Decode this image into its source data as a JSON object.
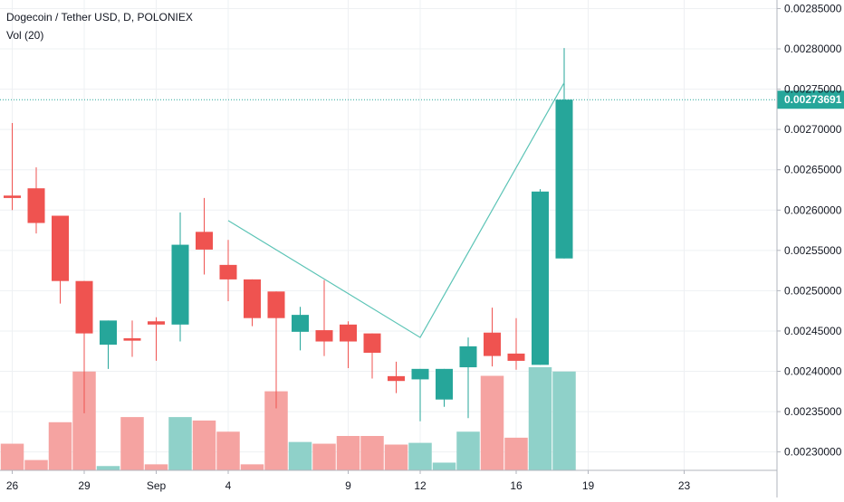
{
  "chart_data": {
    "type": "candlestick",
    "title": "Dogecoin / Tether USD, D, POLONIEX",
    "indicator": "Vol (20)",
    "last_price_label": "0.00273691",
    "last_price": 0.00273691,
    "y_range": [
      0.002285,
      0.002855
    ],
    "y_ticks": [
      "0.00285000",
      "0.00280000",
      "0.00275000",
      "0.00270000",
      "0.00265000",
      "0.00260000",
      "0.00255000",
      "0.00250000",
      "0.00245000",
      "0.00240000",
      "0.00235000",
      "0.00230000"
    ],
    "x_ticks": [
      {
        "label": "26",
        "index": 0
      },
      {
        "label": "29",
        "index": 3
      },
      {
        "label": "Sep",
        "index": 6
      },
      {
        "label": "4",
        "index": 9
      },
      {
        "label": "9",
        "index": 14
      },
      {
        "label": "12",
        "index": 17
      },
      {
        "label": "16",
        "index": 21
      },
      {
        "label": "19",
        "index": 24
      },
      {
        "label": "23",
        "index": 28
      }
    ],
    "candles": [
      {
        "o": 0.002618,
        "h": 0.002708,
        "l": 0.0026,
        "c": 0.002615,
        "v": 0.31
      },
      {
        "o": 0.002627,
        "h": 0.002653,
        "l": 0.002571,
        "c": 0.002584,
        "v": 0.12
      },
      {
        "o": 0.002593,
        "h": 0.002593,
        "l": 0.002484,
        "c": 0.002512,
        "v": 0.56
      },
      {
        "o": 0.002512,
        "h": 0.002512,
        "l": 0.002348,
        "c": 0.002447,
        "v": 1.15
      },
      {
        "o": 0.002433,
        "h": 0.002463,
        "l": 0.002403,
        "c": 0.002463,
        "v": 0.05
      },
      {
        "o": 0.002441,
        "h": 0.002463,
        "l": 0.002418,
        "c": 0.002438,
        "v": 0.62
      },
      {
        "o": 0.002462,
        "h": 0.002467,
        "l": 0.002413,
        "c": 0.002458,
        "v": 0.07
      },
      {
        "o": 0.002458,
        "h": 0.002597,
        "l": 0.002437,
        "c": 0.002557,
        "v": 0.62
      },
      {
        "o": 0.002573,
        "h": 0.002615,
        "l": 0.00252,
        "c": 0.002551,
        "v": 0.58
      },
      {
        "o": 0.002532,
        "h": 0.002563,
        "l": 0.002487,
        "c": 0.002514,
        "v": 0.45
      },
      {
        "o": 0.002514,
        "h": 0.002514,
        "l": 0.002456,
        "c": 0.002466,
        "v": 0.07
      },
      {
        "o": 0.002499,
        "h": 0.002499,
        "l": 0.002354,
        "c": 0.002466,
        "v": 0.92
      },
      {
        "o": 0.002449,
        "h": 0.00248,
        "l": 0.002426,
        "c": 0.00247,
        "v": 0.33
      },
      {
        "o": 0.002451,
        "h": 0.002513,
        "l": 0.002419,
        "c": 0.002437,
        "v": 0.31
      },
      {
        "o": 0.002458,
        "h": 0.002462,
        "l": 0.002404,
        "c": 0.002437,
        "v": 0.4
      },
      {
        "o": 0.002447,
        "h": 0.002447,
        "l": 0.002391,
        "c": 0.002423,
        "v": 0.4
      },
      {
        "o": 0.002394,
        "h": 0.002412,
        "l": 0.002373,
        "c": 0.002388,
        "v": 0.3
      },
      {
        "o": 0.00239,
        "h": 0.002403,
        "l": 0.002338,
        "c": 0.002403,
        "v": 0.32
      },
      {
        "o": 0.002365,
        "h": 0.002403,
        "l": 0.002356,
        "c": 0.002403,
        "v": 0.09
      },
      {
        "o": 0.002405,
        "h": 0.002442,
        "l": 0.002342,
        "c": 0.002431,
        "v": 0.45
      },
      {
        "o": 0.002448,
        "h": 0.002479,
        "l": 0.002406,
        "c": 0.002419,
        "v": 1.1
      },
      {
        "o": 0.002422,
        "h": 0.002466,
        "l": 0.002402,
        "c": 0.002413,
        "v": 0.38
      },
      {
        "o": 0.002408,
        "h": 0.002626,
        "l": 0.002408,
        "c": 0.002623,
        "v": 1.2
      },
      {
        "o": 0.00254,
        "h": 0.002801,
        "l": 0.00254,
        "c": 0.002737,
        "v": 1.15
      }
    ],
    "trend_line": [
      {
        "index": 9,
        "price": 0.002587
      },
      {
        "index": 17,
        "price": 0.002442
      },
      {
        "index": 23,
        "price": 0.002758
      }
    ],
    "colors": {
      "up": "#26a69a",
      "down": "#ef5350",
      "up_volume": "#8fd1c9",
      "down_volume": "#f5a3a1",
      "trend": "#5cc4b6",
      "grid": "#eef0f3",
      "axis_text": "#131722",
      "price_tag": "#26a69a"
    },
    "grid": true,
    "legend_position": "top-left"
  }
}
